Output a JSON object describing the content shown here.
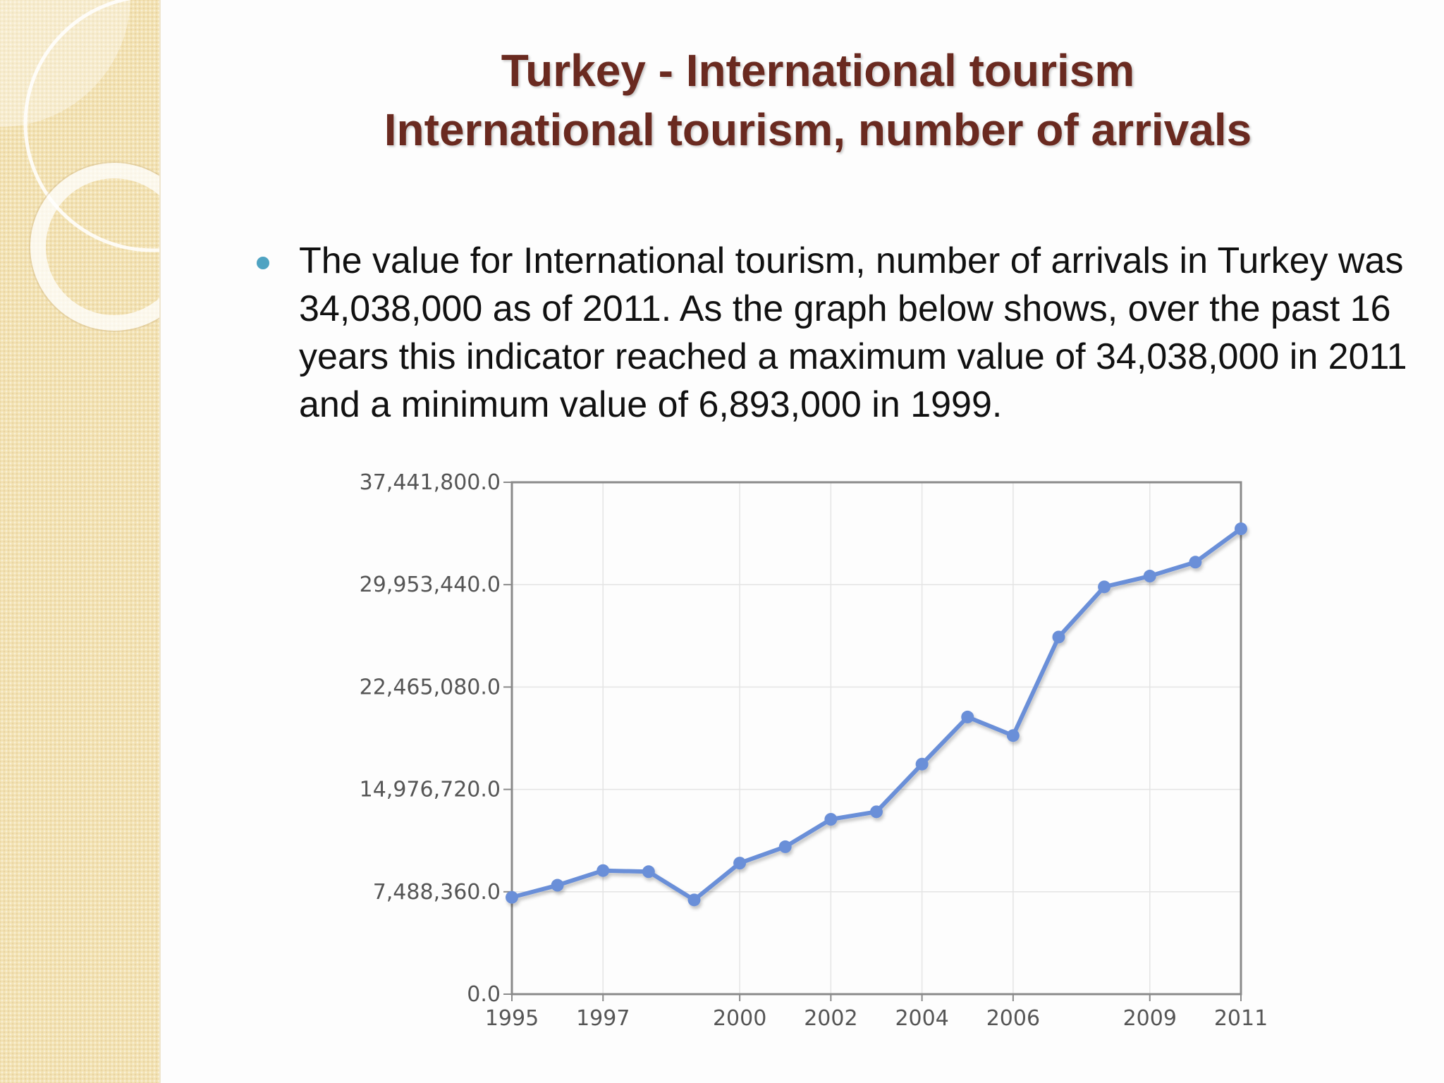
{
  "slide": {
    "title_line1": "Turkey - International tourism",
    "title_line2": "International tourism, number of arrivals",
    "bullet": "The value for International tourism, number of arrivals in Turkey was 34,038,000 as of 2011. As the graph below shows, over the past 16 years this indicator reached a maximum value of 34,038,000 in 2011 and a minimum value of 6,893,000 in 1999."
  },
  "colors": {
    "title": "#6a2a20",
    "bullet": "#4fa3c2",
    "series": "#6a8fd8",
    "side_panel": "#f3e2b3"
  },
  "chart_data": {
    "type": "line",
    "x": [
      1995,
      1996,
      1997,
      1998,
      1999,
      2000,
      2001,
      2002,
      2003,
      2004,
      2005,
      2006,
      2007,
      2008,
      2009,
      2010,
      2011
    ],
    "x_tick_labels": [
      "1995",
      "1997",
      "2000",
      "2002",
      "2004",
      "2006",
      "2009",
      "2011"
    ],
    "y_tick_labels": [
      "0.0",
      "7,488,360.0",
      "14,976,720.0",
      "22,465,080.0",
      "29,953,440.0",
      "37,441,800.0"
    ],
    "series": [
      {
        "values": [
          7083000,
          7966000,
          9040000,
          8960000,
          6893000,
          9586000,
          10783000,
          12790000,
          13341000,
          16826000,
          20273000,
          18916000,
          26122000,
          29792000,
          30580000,
          31600000,
          34038000
        ]
      }
    ],
    "ylim": [
      0,
      37441800
    ],
    "grid": true,
    "legend": "none"
  }
}
